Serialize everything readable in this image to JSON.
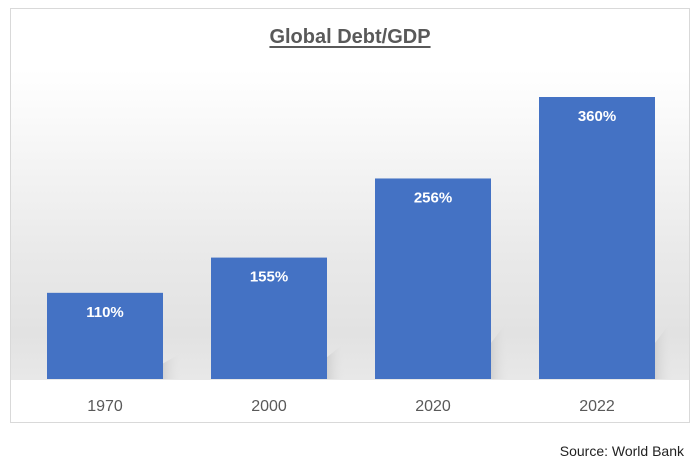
{
  "chart_data": {
    "type": "bar",
    "title": "Global Debt/GDP",
    "categories": [
      "1970",
      "2000",
      "2020",
      "2022"
    ],
    "values": [
      110,
      155,
      256,
      360
    ],
    "data_labels": [
      "110%",
      "155%",
      "256%",
      "360%"
    ],
    "ylim": [
      0,
      360
    ],
    "xlabel": "",
    "ylabel": "",
    "grid": false,
    "legend": "none",
    "bar_color": "#4472C4",
    "label_color": "#ffffff",
    "tick_color": "#595959"
  },
  "footer": {
    "source": "Source: World Bank"
  }
}
